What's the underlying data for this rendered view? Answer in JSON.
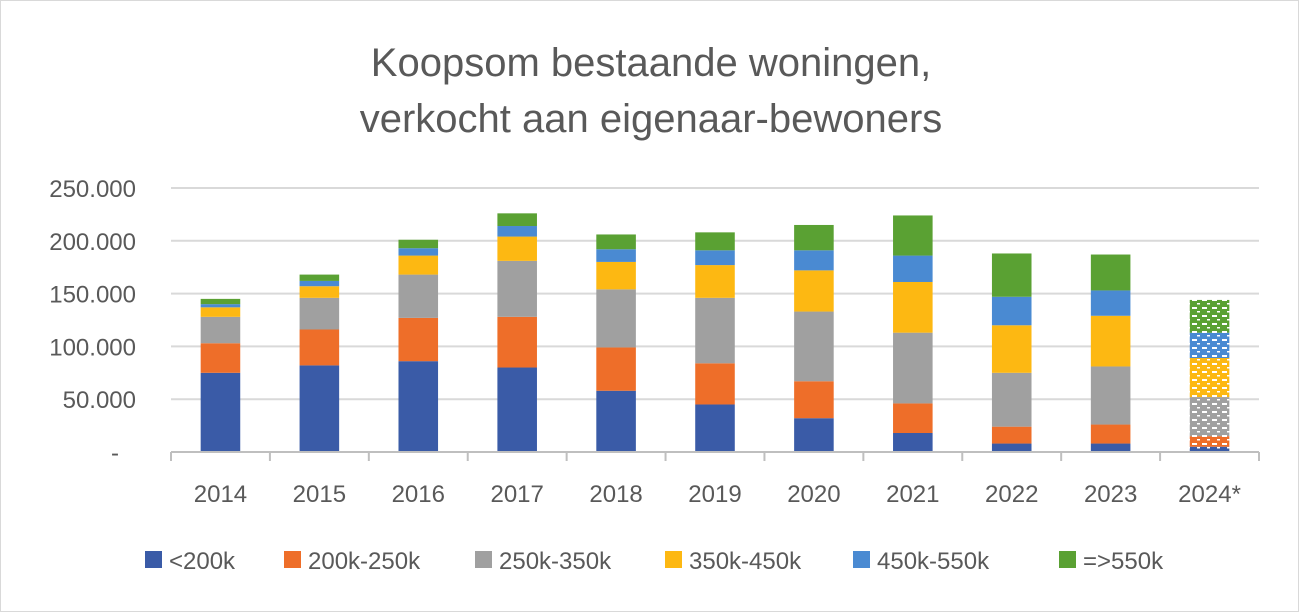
{
  "chart_data": {
    "type": "bar",
    "stacked": true,
    "title_lines": [
      "Koopsom bestaande woningen,",
      "verkocht aan eigenaar-bewoners"
    ],
    "categories": [
      "2014",
      "2015",
      "2016",
      "2017",
      "2018",
      "2019",
      "2020",
      "2021",
      "2022",
      "2023",
      "2024*"
    ],
    "estimated_categories": [
      "2024*"
    ],
    "ylim": [
      0,
      250000
    ],
    "yticks": [
      0,
      50000,
      100000,
      150000,
      200000,
      250000
    ],
    "ytick_labels": [
      "-",
      "50.000",
      "100.000",
      "150.000",
      "200.000",
      "250.000"
    ],
    "grid": true,
    "legend_position": "bottom",
    "series": [
      {
        "name": "<200k",
        "color": "#3a5ba7",
        "values": [
          75000,
          82000,
          86000,
          80000,
          58000,
          45000,
          32000,
          18000,
          8000,
          8000,
          5000
        ]
      },
      {
        "name": "200k-250k",
        "color": "#ee6e29",
        "values": [
          28000,
          34000,
          41000,
          48000,
          41000,
          39000,
          35000,
          28000,
          16000,
          18000,
          10000
        ]
      },
      {
        "name": "250k-350k",
        "color": "#a0a0a0",
        "values": [
          25000,
          30000,
          41000,
          53000,
          55000,
          62000,
          66000,
          67000,
          51000,
          55000,
          37000
        ]
      },
      {
        "name": "350k-450k",
        "color": "#fdb812",
        "values": [
          9000,
          11000,
          18000,
          23000,
          26000,
          31000,
          39000,
          48000,
          45000,
          48000,
          37000
        ]
      },
      {
        "name": "450k-550k",
        "color": "#4a8ad2",
        "values": [
          3000,
          5000,
          7000,
          10000,
          12000,
          14000,
          19000,
          25000,
          27000,
          24000,
          24000
        ]
      },
      {
        "name": "=>550k",
        "color": "#5aa133",
        "values": [
          5000,
          6000,
          8000,
          12000,
          14000,
          17000,
          24000,
          38000,
          41000,
          34000,
          31000
        ]
      }
    ]
  }
}
